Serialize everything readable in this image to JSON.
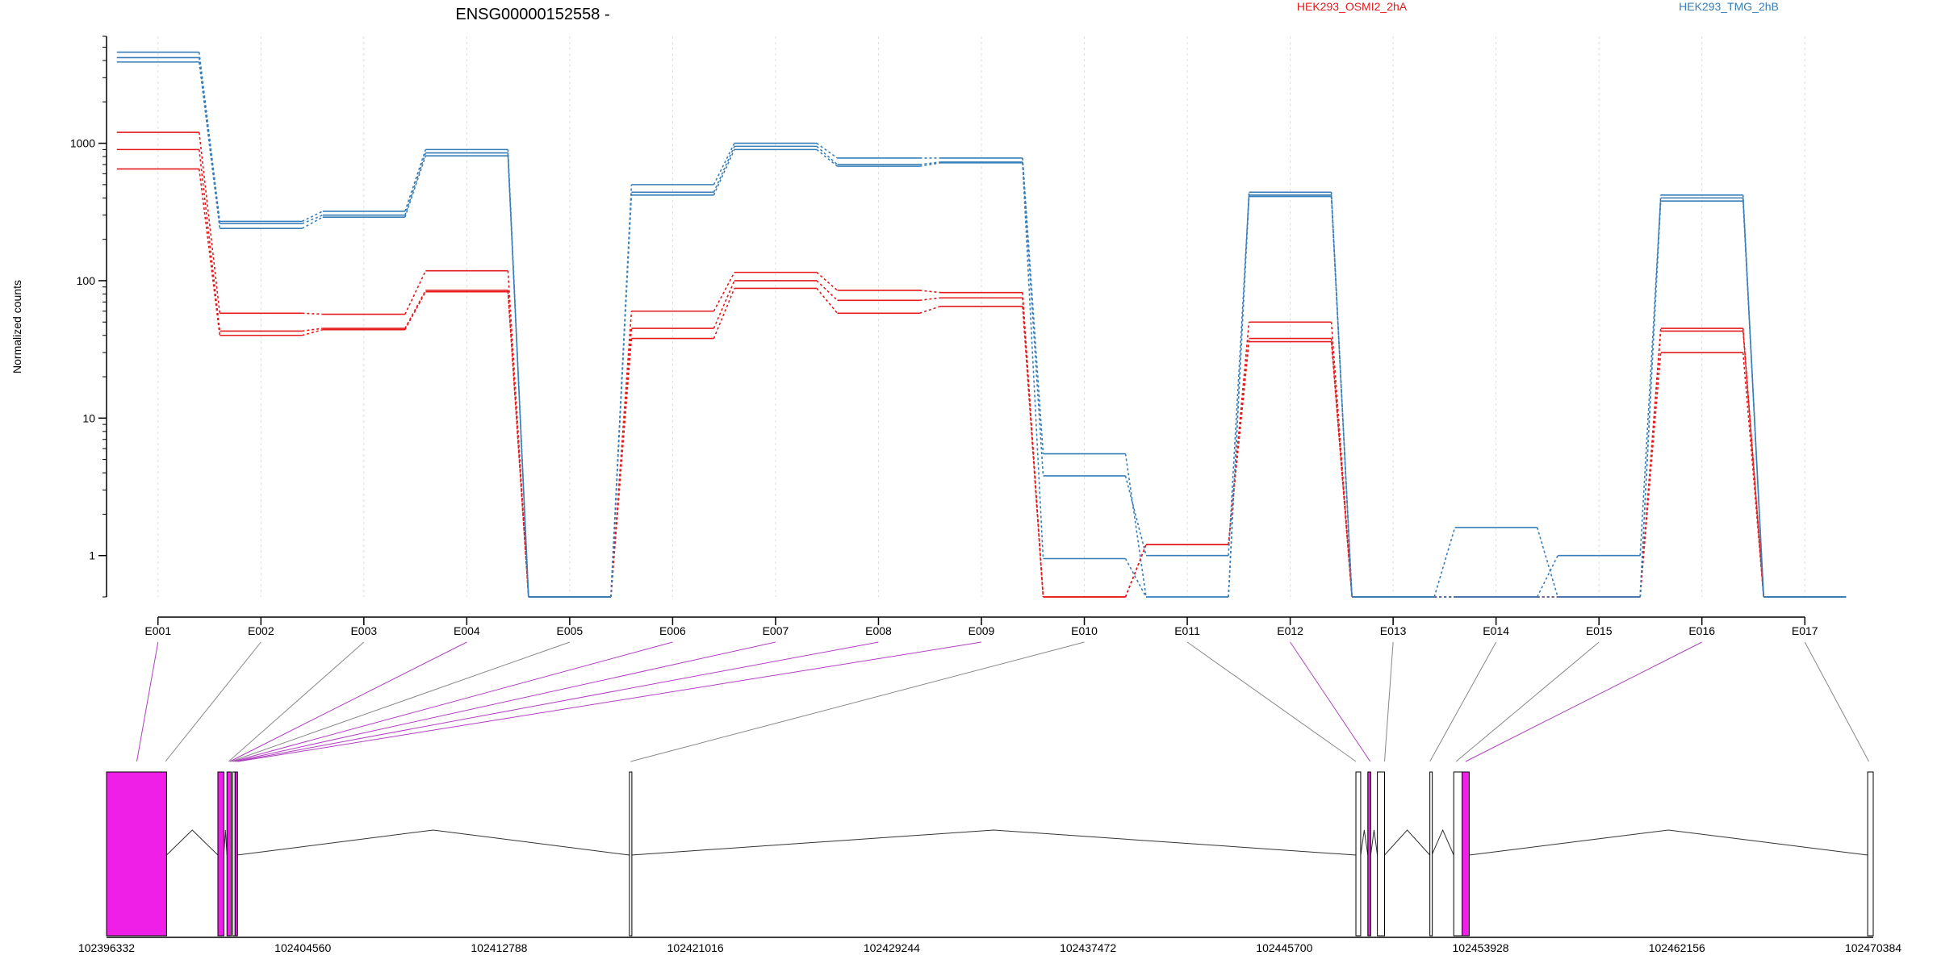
{
  "chart_data": {
    "type": "line",
    "title": "ENSG00000152558 -",
    "ylabel": "Normalized counts",
    "y_scale": "log",
    "ylim": [
      0.5,
      6000
    ],
    "y_ticks": [
      {
        "label": "1",
        "value": 1
      },
      {
        "label": "10",
        "value": 10
      },
      {
        "label": "100",
        "value": 100
      },
      {
        "label": "1000",
        "value": 1000
      }
    ],
    "grid": "vertical dotted",
    "categories": [
      "E001",
      "E002",
      "E003",
      "E004",
      "E005",
      "E006",
      "E007",
      "E008",
      "E009",
      "E010",
      "E011",
      "E012",
      "E013",
      "E014",
      "E015",
      "E016",
      "E017"
    ],
    "legend": [
      {
        "label": "HEK293_OSMI2_2hA",
        "color": "#e41a1c"
      },
      {
        "label": "HEK293_TMG_2hB",
        "color": "#377eb8"
      }
    ],
    "series": [
      {
        "group": 1,
        "color": "#e41a1c",
        "values": [
          1200,
          58,
          57,
          118,
          0.5,
          60,
          115,
          85,
          82,
          0.5,
          1.2,
          50,
          0.5,
          0.5,
          0.5,
          45,
          0.5
        ]
      },
      {
        "group": 1,
        "color": "#e41a1c",
        "values": [
          900,
          43,
          45,
          85,
          0.5,
          45,
          100,
          72,
          75,
          0.5,
          1.2,
          38,
          0.5,
          0.5,
          0.5,
          43,
          0.5
        ]
      },
      {
        "group": 1,
        "color": "#e41a1c",
        "values": [
          650,
          40,
          44,
          83,
          0.5,
          38,
          88,
          58,
          65,
          0.5,
          1.2,
          36,
          0.5,
          0.5,
          0.5,
          30,
          0.5
        ]
      },
      {
        "group": 2,
        "color": "#377eb8",
        "values": [
          4600,
          270,
          320,
          900,
          0.5,
          500,
          1000,
          780,
          780,
          5.5,
          0.5,
          440,
          0.5,
          1.6,
          0.5,
          420,
          0.5
        ]
      },
      {
        "group": 2,
        "color": "#377eb8",
        "values": [
          4200,
          260,
          300,
          850,
          0.5,
          440,
          950,
          700,
          730,
          3.8,
          1.0,
          420,
          0.5,
          0.5,
          1.0,
          400,
          0.5
        ]
      },
      {
        "group": 2,
        "color": "#377eb8",
        "values": [
          3900,
          240,
          290,
          810,
          0.5,
          420,
          900,
          680,
          720,
          0.95,
          0.5,
          410,
          0.5,
          0.5,
          0.5,
          380,
          0.5
        ]
      }
    ],
    "gene_model": {
      "x_ticks": [
        "102396332",
        "102404560",
        "102412788",
        "102421016",
        "102429244",
        "102437472",
        "102445700",
        "102453928",
        "102462156",
        "102470384"
      ],
      "x_range": [
        102396332,
        102470384
      ],
      "exon_links": [
        {
          "exon": "E001",
          "genomic": 102397600,
          "highlight": true
        },
        {
          "exon": "E002",
          "genomic": 102398800,
          "highlight": false
        },
        {
          "exon": "E003",
          "genomic": 102401450,
          "highlight": false
        },
        {
          "exon": "E004",
          "genomic": 102401500,
          "highlight": true
        },
        {
          "exon": "E005",
          "genomic": 102401550,
          "highlight": false
        },
        {
          "exon": "E006",
          "genomic": 102401620,
          "highlight": true
        },
        {
          "exon": "E007",
          "genomic": 102401700,
          "highlight": true
        },
        {
          "exon": "E008",
          "genomic": 102401780,
          "highlight": true
        },
        {
          "exon": "E009",
          "genomic": 102401850,
          "highlight": true
        },
        {
          "exon": "E010",
          "genomic": 102418300,
          "highlight": false
        },
        {
          "exon": "E011",
          "genomic": 102448700,
          "highlight": false
        },
        {
          "exon": "E012",
          "genomic": 102449300,
          "highlight": true
        },
        {
          "exon": "E013",
          "genomic": 102449900,
          "highlight": false
        },
        {
          "exon": "E014",
          "genomic": 102451800,
          "highlight": false
        },
        {
          "exon": "E015",
          "genomic": 102452900,
          "highlight": false
        },
        {
          "exon": "E016",
          "genomic": 102453300,
          "highlight": true
        },
        {
          "exon": "E017",
          "genomic": 102470200,
          "highlight": false
        }
      ],
      "exons": [
        {
          "start": 102396332,
          "end": 102398850,
          "filled": true
        },
        {
          "start": 102401000,
          "end": 102401250,
          "filled": true
        },
        {
          "start": 102401380,
          "end": 102401560,
          "filled": true
        },
        {
          "start": 102401620,
          "end": 102401700,
          "filled": false
        },
        {
          "start": 102401720,
          "end": 102401800,
          "filled": true
        },
        {
          "start": 102418250,
          "end": 102418330,
          "filled": false
        },
        {
          "start": 102448700,
          "end": 102448900,
          "filled": false
        },
        {
          "start": 102449200,
          "end": 102449320,
          "filled": true
        },
        {
          "start": 102449600,
          "end": 102449900,
          "filled": false
        },
        {
          "start": 102451800,
          "end": 102451880,
          "filled": false
        },
        {
          "start": 102452800,
          "end": 102453150,
          "filled": false
        },
        {
          "start": 102453150,
          "end": 102453450,
          "filled": true
        },
        {
          "start": 102470150,
          "end": 102470384,
          "filled": false
        }
      ],
      "fill_color": "#f01fe8"
    }
  }
}
